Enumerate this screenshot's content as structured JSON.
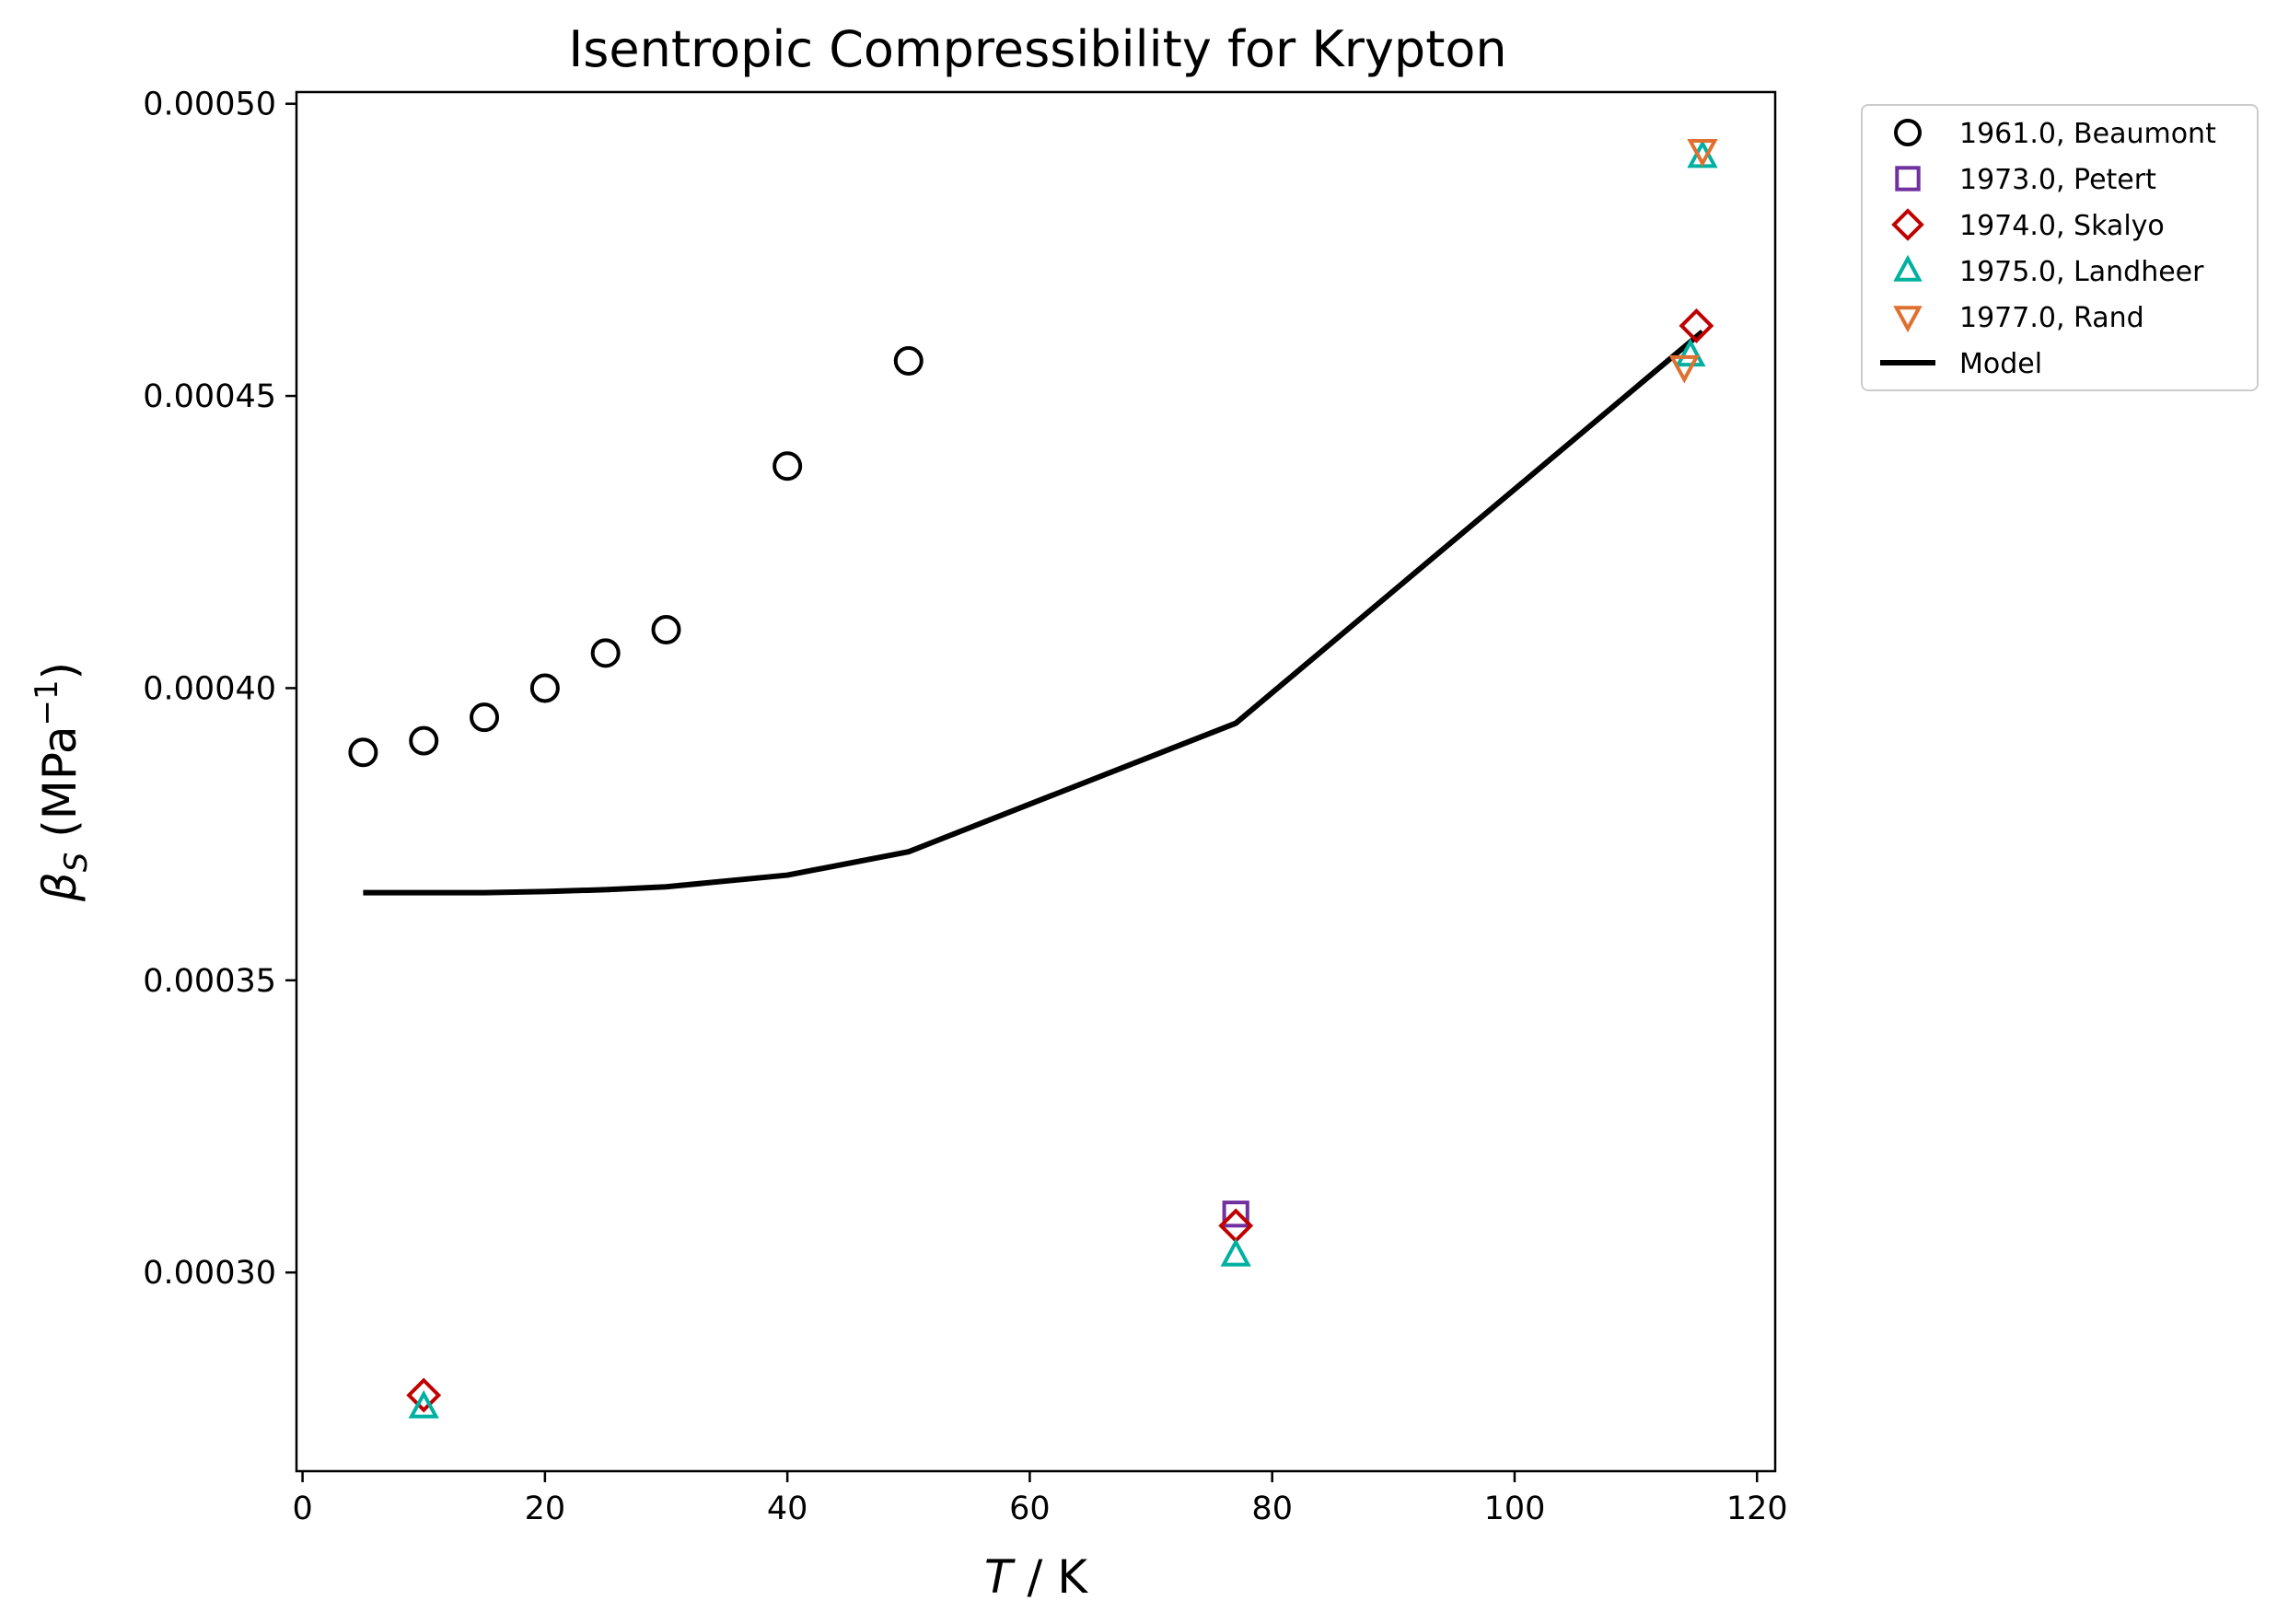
{
  "chart_data": {
    "type": "scatter",
    "title": "Isentropic Compressibility for Krypton",
    "xlabel": {
      "var": "T",
      "rest": " / K"
    },
    "ylabel": {
      "var": "β",
      "sub": "S",
      "rest": " (MPa",
      "sup": "−1",
      "close": ")"
    },
    "xlim": [
      -0.5,
      121.5
    ],
    "ylim": [
      0.000266,
      0.000502
    ],
    "x_ticks": [
      0,
      20,
      40,
      60,
      80,
      100,
      120
    ],
    "x_tick_labels": [
      "0",
      "20",
      "40",
      "60",
      "80",
      "100",
      "120"
    ],
    "y_ticks": [
      0.0003,
      0.00035,
      0.0004,
      0.00045,
      0.0005
    ],
    "y_tick_labels": [
      "0.00030",
      "0.00035",
      "0.00040",
      "0.00045",
      "0.00050"
    ],
    "grid": false,
    "legend_position": "outside-top-right",
    "series": [
      {
        "name": "1961.0, Beaumont",
        "marker": "circle",
        "color": "#000000",
        "points": [
          [
            5,
            0.000389
          ],
          [
            10,
            0.000391
          ],
          [
            15,
            0.000395
          ],
          [
            20,
            0.0004
          ],
          [
            25,
            0.000406
          ],
          [
            30,
            0.00041
          ],
          [
            40,
            0.000438
          ],
          [
            50,
            0.000456
          ]
        ]
      },
      {
        "name": "1973.0, Petert",
        "marker": "square",
        "color": "#7030a0",
        "points": [
          [
            77,
            0.00031
          ]
        ]
      },
      {
        "name": "1974.0, Skalyo",
        "marker": "diamond",
        "color": "#c00000",
        "points": [
          [
            10,
            0.000279
          ],
          [
            77,
            0.000308
          ],
          [
            115,
            0.000462
          ]
        ]
      },
      {
        "name": "1975.0, Landheer",
        "marker": "triangle-up",
        "color": "#00b0a0",
        "points": [
          [
            10,
            0.000277
          ],
          [
            77,
            0.000303
          ],
          [
            114.5,
            0.000457
          ],
          [
            115.5,
            0.000491
          ]
        ]
      },
      {
        "name": "1977.0, Rand",
        "marker": "triangle-down",
        "color": "#e07030",
        "points": [
          [
            114,
            0.000455
          ],
          [
            115.5,
            0.000492
          ]
        ]
      },
      {
        "name": "Model",
        "marker": "line",
        "color": "#000000",
        "points": [
          [
            5,
            0.000365
          ],
          [
            10,
            0.000365
          ],
          [
            15,
            0.000365
          ],
          [
            20,
            0.0003652
          ],
          [
            25,
            0.0003655
          ],
          [
            30,
            0.000366
          ],
          [
            40,
            0.000368
          ],
          [
            50,
            0.000372
          ],
          [
            77,
            0.000394
          ],
          [
            115.5,
            0.000461
          ]
        ]
      }
    ]
  }
}
